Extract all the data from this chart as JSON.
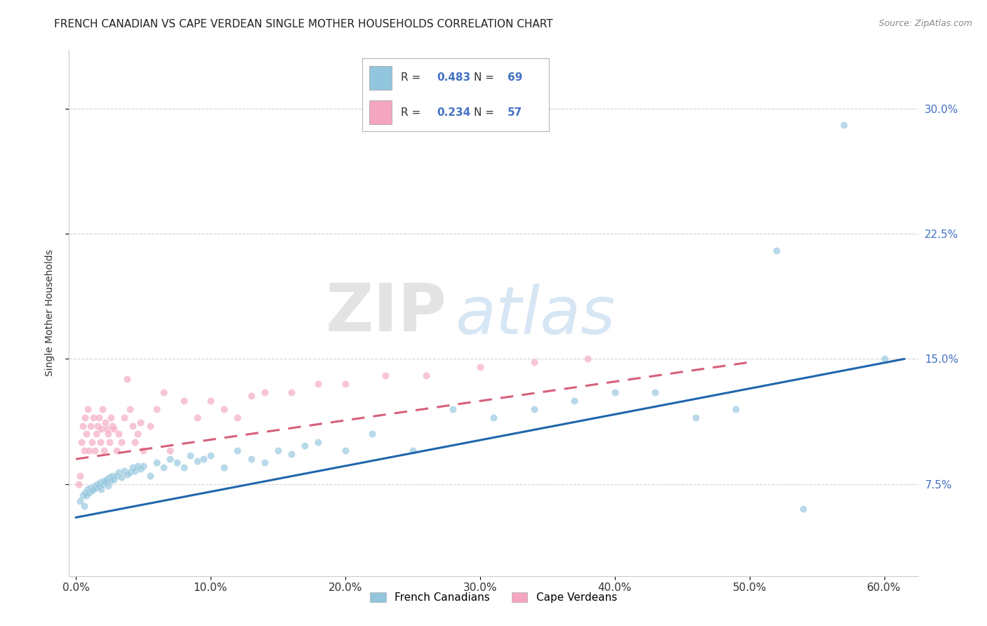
{
  "title": "FRENCH CANADIAN VS CAPE VERDEAN SINGLE MOTHER HOUSEHOLDS CORRELATION CHART",
  "source": "Source: ZipAtlas.com",
  "ylabel": "Single Mother Households",
  "xlabel_ticks": [
    "0.0%",
    "10.0%",
    "20.0%",
    "30.0%",
    "40.0%",
    "50.0%",
    "60.0%"
  ],
  "xlabel_vals": [
    0.0,
    0.1,
    0.2,
    0.3,
    0.4,
    0.5,
    0.6
  ],
  "ytick_labels_right": [
    "7.5%",
    "15.0%",
    "22.5%",
    "30.0%"
  ],
  "ytick_vals": [
    0.075,
    0.15,
    0.225,
    0.3
  ],
  "xlim": [
    -0.005,
    0.625
  ],
  "ylim": [
    0.02,
    0.335
  ],
  "blue_color": "#92c5de",
  "pink_color": "#f4a6c0",
  "blue_line_color": "#2166ac",
  "pink_line_color": "#d6607a",
  "legend_R_blue": "0.483",
  "legend_N_blue": "69",
  "legend_R_pink": "0.234",
  "legend_N_pink": "57",
  "legend_label_blue": "French Canadians",
  "legend_label_pink": "Cape Verdeans",
  "watermark_ZIP": "ZIP",
  "watermark_atlas": "atlas",
  "blue_scatter_x": [
    0.003,
    0.005,
    0.006,
    0.007,
    0.008,
    0.009,
    0.01,
    0.011,
    0.012,
    0.013,
    0.014,
    0.015,
    0.016,
    0.017,
    0.018,
    0.019,
    0.02,
    0.021,
    0.022,
    0.023,
    0.024,
    0.025,
    0.026,
    0.027,
    0.028,
    0.03,
    0.032,
    0.034,
    0.036,
    0.038,
    0.04,
    0.042,
    0.044,
    0.046,
    0.048,
    0.05,
    0.055,
    0.06,
    0.065,
    0.07,
    0.075,
    0.08,
    0.085,
    0.09,
    0.095,
    0.1,
    0.11,
    0.12,
    0.13,
    0.14,
    0.15,
    0.16,
    0.17,
    0.18,
    0.2,
    0.22,
    0.25,
    0.28,
    0.31,
    0.34,
    0.37,
    0.4,
    0.43,
    0.46,
    0.49,
    0.52,
    0.54,
    0.57,
    0.6
  ],
  "blue_scatter_y": [
    0.065,
    0.068,
    0.062,
    0.07,
    0.068,
    0.072,
    0.07,
    0.073,
    0.071,
    0.072,
    0.074,
    0.073,
    0.075,
    0.074,
    0.076,
    0.072,
    0.075,
    0.077,
    0.076,
    0.078,
    0.074,
    0.079,
    0.077,
    0.08,
    0.078,
    0.08,
    0.082,
    0.079,
    0.083,
    0.081,
    0.082,
    0.085,
    0.083,
    0.086,
    0.084,
    0.086,
    0.08,
    0.088,
    0.085,
    0.09,
    0.088,
    0.085,
    0.092,
    0.089,
    0.09,
    0.092,
    0.085,
    0.095,
    0.09,
    0.088,
    0.095,
    0.093,
    0.098,
    0.1,
    0.095,
    0.105,
    0.095,
    0.12,
    0.115,
    0.12,
    0.125,
    0.13,
    0.13,
    0.115,
    0.12,
    0.215,
    0.06,
    0.29,
    0.15
  ],
  "pink_scatter_x": [
    0.002,
    0.003,
    0.004,
    0.005,
    0.006,
    0.007,
    0.008,
    0.009,
    0.01,
    0.011,
    0.012,
    0.013,
    0.014,
    0.015,
    0.016,
    0.017,
    0.018,
    0.019,
    0.02,
    0.021,
    0.022,
    0.023,
    0.024,
    0.025,
    0.026,
    0.027,
    0.028,
    0.03,
    0.032,
    0.034,
    0.036,
    0.038,
    0.04,
    0.042,
    0.044,
    0.046,
    0.048,
    0.05,
    0.055,
    0.06,
    0.065,
    0.07,
    0.08,
    0.09,
    0.1,
    0.11,
    0.12,
    0.13,
    0.14,
    0.16,
    0.18,
    0.2,
    0.23,
    0.26,
    0.3,
    0.34,
    0.38
  ],
  "pink_scatter_y": [
    0.075,
    0.08,
    0.1,
    0.11,
    0.095,
    0.115,
    0.105,
    0.12,
    0.095,
    0.11,
    0.1,
    0.115,
    0.095,
    0.105,
    0.11,
    0.115,
    0.1,
    0.108,
    0.12,
    0.095,
    0.112,
    0.108,
    0.105,
    0.1,
    0.115,
    0.11,
    0.108,
    0.095,
    0.105,
    0.1,
    0.115,
    0.138,
    0.12,
    0.11,
    0.1,
    0.105,
    0.112,
    0.095,
    0.11,
    0.12,
    0.13,
    0.095,
    0.125,
    0.115,
    0.125,
    0.12,
    0.115,
    0.128,
    0.13,
    0.13,
    0.135,
    0.135,
    0.14,
    0.14,
    0.145,
    0.148,
    0.15
  ],
  "blue_line_x": [
    0.0,
    0.615
  ],
  "blue_line_y": [
    0.055,
    0.15
  ],
  "pink_line_x": [
    0.0,
    0.5
  ],
  "pink_line_y": [
    0.09,
    0.148
  ],
  "background_color": "#ffffff",
  "grid_color": "#cccccc",
  "title_fontsize": 11,
  "axis_label_fontsize": 10,
  "tick_fontsize": 11,
  "marker_size": 55,
  "marker_alpha": 0.65
}
